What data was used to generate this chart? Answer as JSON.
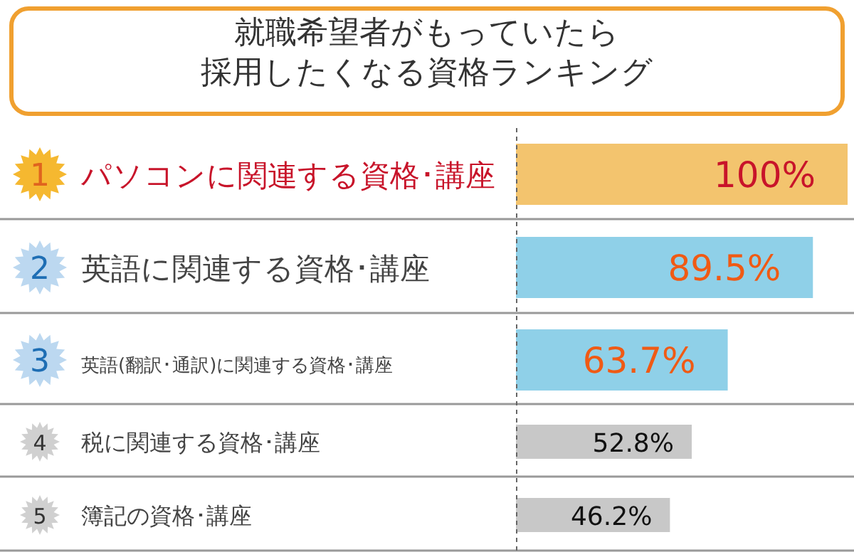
{
  "chart_data": {
    "type": "bar",
    "orientation": "horizontal",
    "title": "就職希望者がもっていたら",
    "subtitle": "採用したくなる資格ランキング",
    "categories": [
      "パソコンに関連する資格･講座",
      "英語に関連する資格･講座",
      "英語(翻訳･通訳)に関連する資格･講座",
      "税に関連する資格･講座",
      "簿記の資格･講座"
    ],
    "values": [
      100,
      89.5,
      63.7,
      52.8,
      46.2
    ],
    "value_labels": [
      "100%",
      "89.5%",
      "63.7%",
      "52.8%",
      "46.2%"
    ],
    "colors": [
      "#f3c46e",
      "#8fd0e8",
      "#8fd0e8",
      "#c8c8c8",
      "#c8c8c8"
    ],
    "annotations": [
      "1",
      "2",
      "3",
      "4",
      "5"
    ]
  }
}
